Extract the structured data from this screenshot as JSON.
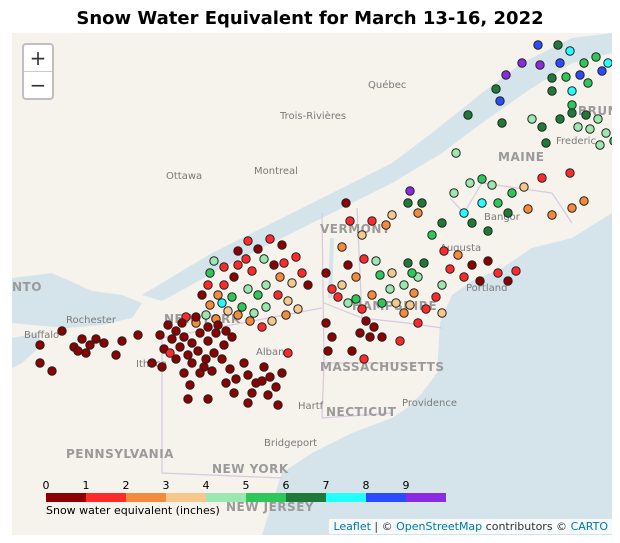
{
  "title": "Snow Water Equivalent for March 13-16, 2022",
  "zoom": {
    "in_label": "+",
    "out_label": "−"
  },
  "legend": {
    "label": "Snow water equivalent (inches)",
    "ticks": [
      "0",
      "1",
      "2",
      "3",
      "4",
      "5",
      "6",
      "7",
      "8",
      "9"
    ],
    "colors": [
      "#8b0000",
      "#ff2a2a",
      "#f58a3c",
      "#f7c88e",
      "#9ae8b0",
      "#2ec85a",
      "#1f7a3a",
      "#22ffff",
      "#2b4bff",
      "#8a2be2"
    ]
  },
  "attribution": {
    "leaflet": "Leaflet",
    "sep": " | © ",
    "osm": "OpenStreetMap",
    "contrib": " contributors © ",
    "carto": "CARTO"
  },
  "place_labels": {
    "quebec": "Québec",
    "trois_rivieres": "Trois-Rivières",
    "ottawa": "Ottawa",
    "montreal": "Montreal",
    "maine": "MAINE",
    "fredericton": "Frederic",
    "bruns": "BRUN",
    "vermont": "VERMONT",
    "augusta": "Augusta",
    "bangor": "Bangor",
    "portland": "Portland",
    "new_hampshire": "HAMPSHIRE",
    "nto": "NTO",
    "rochester": "Rochester",
    "buffalo": "Buffalo",
    "new_york_state": "NEW YORK",
    "ithaca": "Ithaca",
    "albany": "Albany",
    "massachusetts": "MASSACHUSETTS",
    "hartford": "Hartf",
    "connecticut": "NECTICUT",
    "providence": "Providence",
    "bridgeport": "Bridgeport",
    "pennsylvania": "PENNSYLVANIA",
    "new_york_city": "NEW YORK",
    "new_jersey": "NEW JERSEY"
  },
  "color_key": {
    "dr": "#8b0000",
    "r": "#ff2a2a",
    "o": "#f58a3c",
    "t": "#f7c88e",
    "lg": "#9ae8b0",
    "g": "#2ec85a",
    "dg": "#1f7a3a",
    "c": "#22ffff",
    "b": "#2b4bff",
    "p": "#8a2be2"
  }
}
